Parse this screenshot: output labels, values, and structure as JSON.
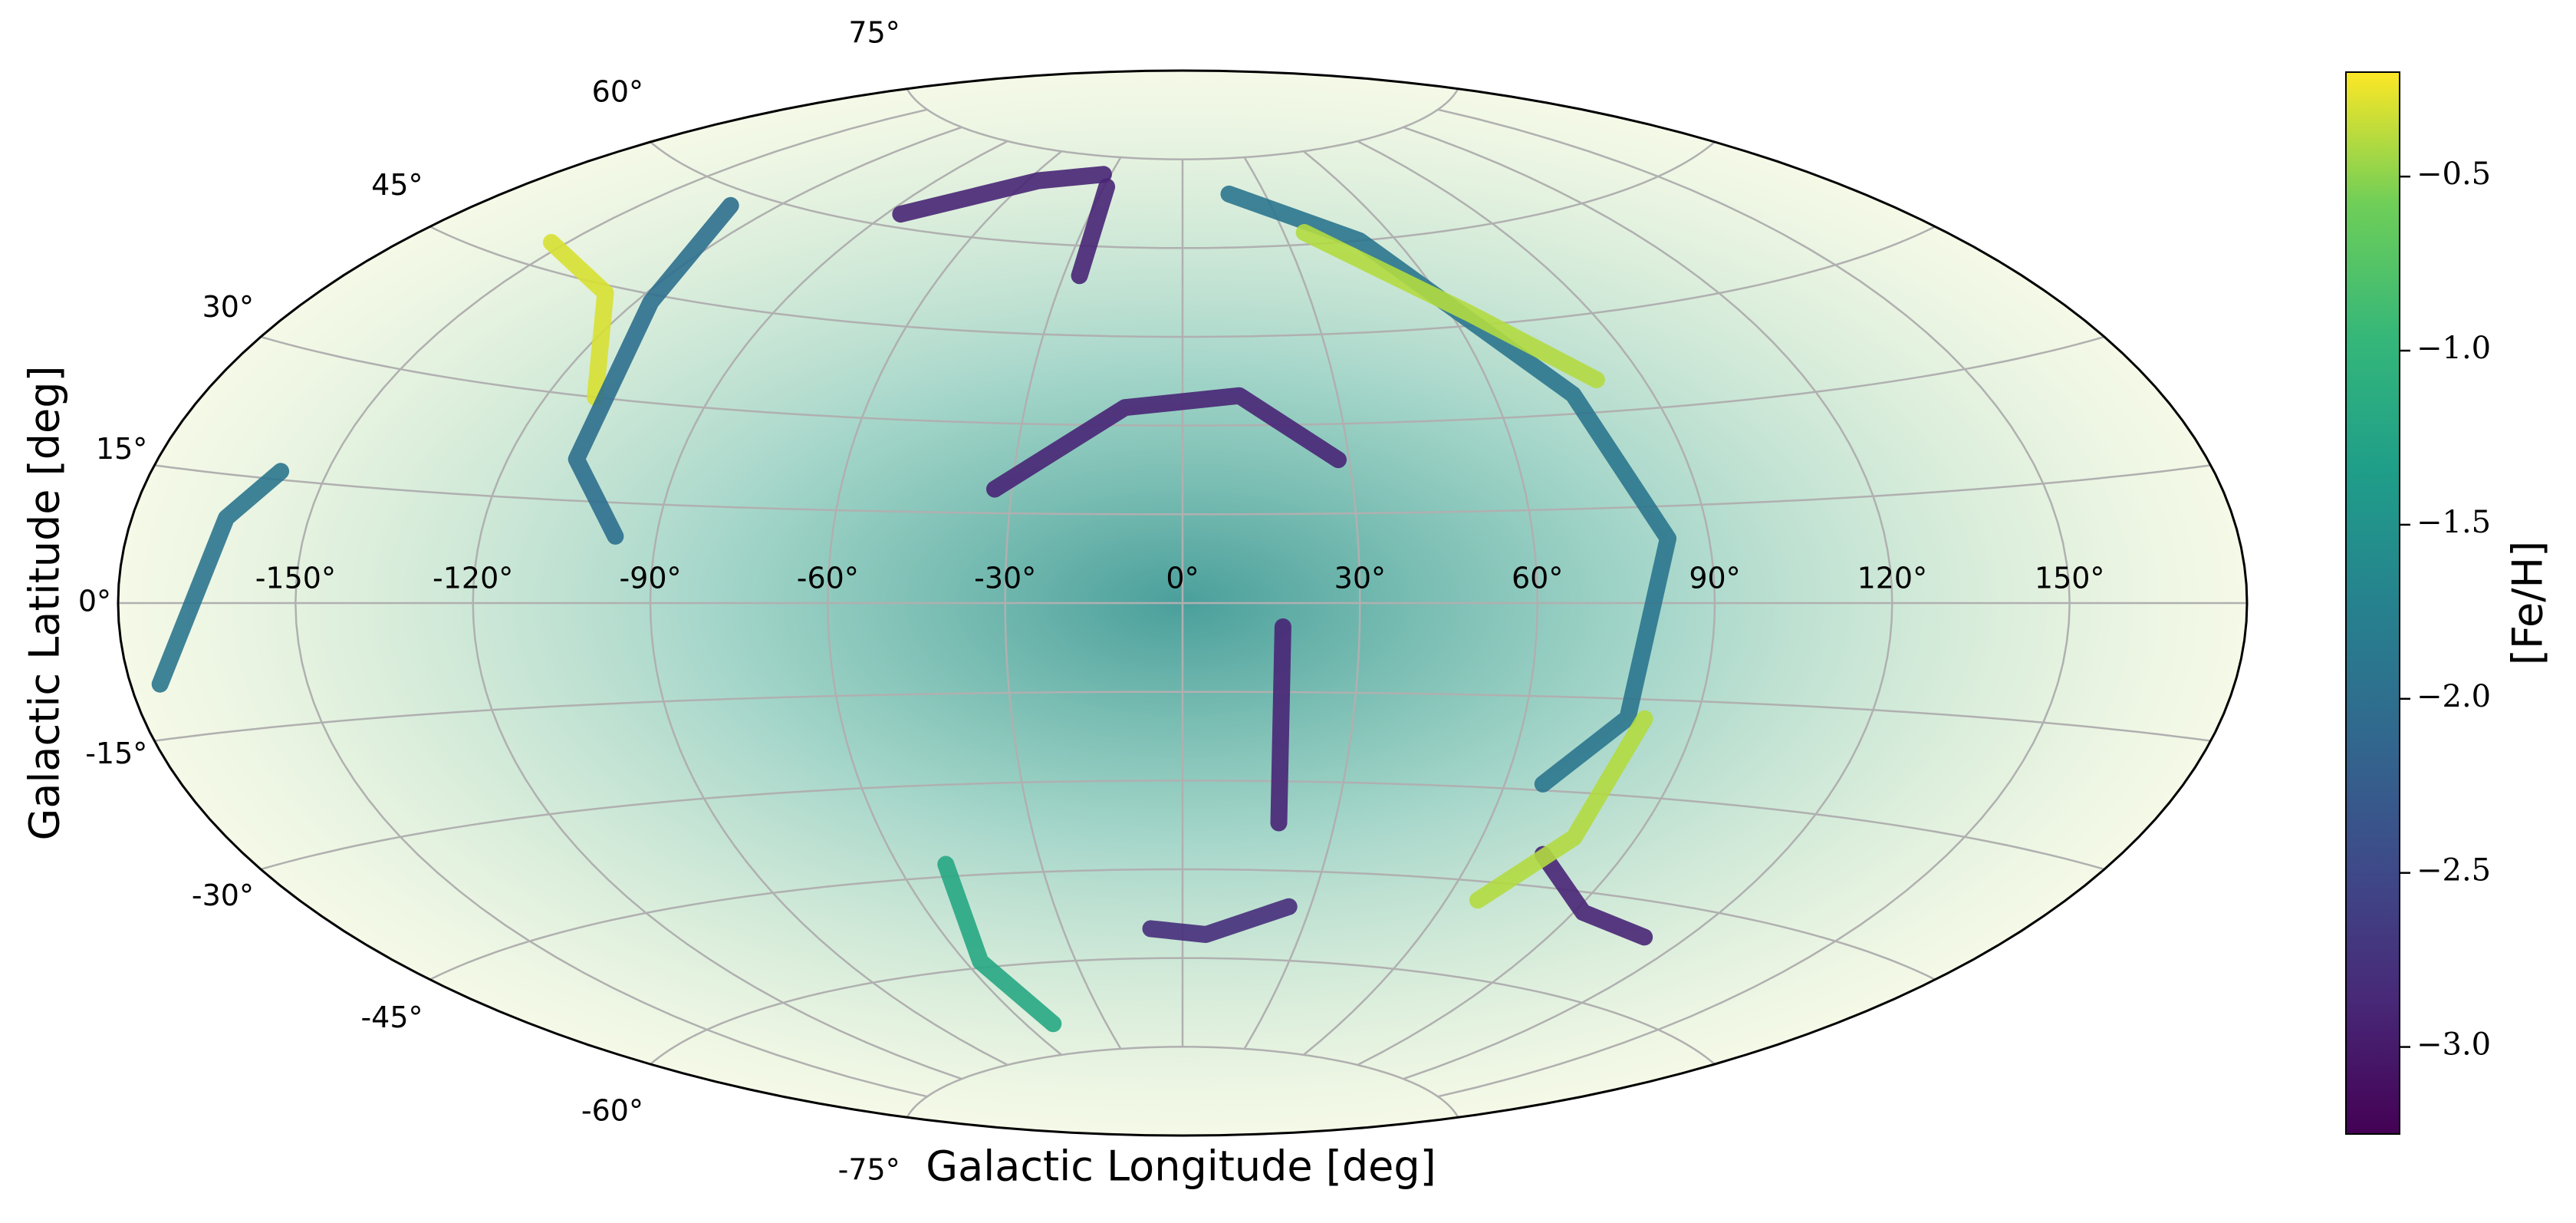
{
  "chart_data": {
    "type": "sky-map",
    "projection": "aitoff",
    "colormap": "viridis",
    "xlabel": "Galactic Longitude [deg]",
    "ylabel": "Galactic Latitude [deg]",
    "colorbar_label": "[Fe/H]",
    "xlim": [
      -180,
      180
    ],
    "ylim": [
      -90,
      90
    ],
    "xticks": [
      {
        "value": -150,
        "label": "-150°"
      },
      {
        "value": -120,
        "label": "-120°"
      },
      {
        "value": -90,
        "label": "-90°"
      },
      {
        "value": -60,
        "label": "-60°"
      },
      {
        "value": -30,
        "label": "-30°"
      },
      {
        "value": 0,
        "label": "0°"
      },
      {
        "value": 30,
        "label": "30°"
      },
      {
        "value": 60,
        "label": "60°"
      },
      {
        "value": 90,
        "label": "90°"
      },
      {
        "value": 120,
        "label": "120°"
      },
      {
        "value": 150,
        "label": "150°"
      }
    ],
    "yticks": [
      {
        "value": -75,
        "label": "-75°"
      },
      {
        "value": -60,
        "label": "-60°"
      },
      {
        "value": -45,
        "label": "-45°"
      },
      {
        "value": -30,
        "label": "-30°"
      },
      {
        "value": -15,
        "label": "-15°"
      },
      {
        "value": 0,
        "label": "0°"
      },
      {
        "value": 15,
        "label": "15°"
      },
      {
        "value": 30,
        "label": "30°"
      },
      {
        "value": 45,
        "label": "45°"
      },
      {
        "value": 60,
        "label": "60°"
      },
      {
        "value": 75,
        "label": "75°"
      }
    ],
    "clim": [
      -3.25,
      -0.2
    ],
    "cticks": [
      {
        "value": -3.0,
        "label": "−3.0"
      },
      {
        "value": -2.5,
        "label": "−2.5"
      },
      {
        "value": -2.0,
        "label": "−2.0"
      },
      {
        "value": -1.5,
        "label": "−1.5"
      },
      {
        "value": -1.0,
        "label": "−1.0"
      },
      {
        "value": -0.5,
        "label": "−0.5"
      }
    ],
    "grid": true,
    "series": [
      {
        "lon": [
          -33,
          -11,
          11,
          28
        ],
        "lat": [
          19,
          33,
          35,
          24
        ],
        "feh": -2.9
      },
      {
        "lon": [
          17,
          19
        ],
        "lat": [
          -4,
          -37
        ],
        "feh": -2.9
      },
      {
        "lon": [
          74,
          92,
          111
        ],
        "lat": [
          -40,
          -48,
          -50
        ],
        "feh": -2.9
      },
      {
        "lon": [
          -8,
          6,
          25
        ],
        "lat": [
          -55,
          -56,
          -51
        ],
        "feh": -2.8
      },
      {
        "lon": [
          17,
          50,
          75,
          83,
          78,
          67
        ],
        "lat": [
          69,
          60,
          33,
          10,
          -18,
          -29
        ],
        "feh": -1.9
      },
      {
        "lon": [
          36,
          64,
          81
        ],
        "lat": [
          62,
          47,
          35
        ],
        "feh": -0.4
      },
      {
        "lon": [
          -153,
          -128,
          -111
        ],
        "lat": [
          48,
          44,
          30
        ],
        "feh": -0.3
      },
      {
        "lon": [
          -175,
          -164,
          -158
        ],
        "lat": [
          -9,
          10,
          16
        ],
        "feh": -1.9
      },
      {
        "lon": [
          81,
          78,
          67
        ],
        "lat": [
          -18,
          -37,
          -48
        ],
        "feh": -0.4
      },
      {
        "lon": [
          -50,
          -56,
          -50
        ],
        "lat": [
          -43,
          -59,
          -70
        ],
        "feh": -1.2
      },
      {
        "lon": [
          -131,
          -117,
          -108,
          -97
        ],
        "lat": [
          58,
          44,
          21,
          10
        ],
        "feh": -2.0
      },
      {
        "lon": [
          -86,
          -56,
          -33
        ],
        "lat": [
          62,
          70,
          72
        ],
        "feh": -2.9
      },
      {
        "lon": [
          -29,
          -26
        ],
        "lat": [
          70,
          55
        ],
        "feh": -2.9
      }
    ]
  }
}
